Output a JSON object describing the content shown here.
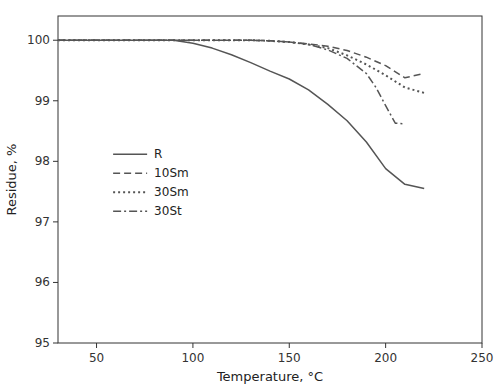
{
  "chart_data": {
    "type": "line",
    "xlabel": "Temperature, °C",
    "ylabel": "Residue, %",
    "xlim": [
      30,
      250
    ],
    "ylim": [
      95,
      100.4
    ],
    "xticks": [
      50,
      100,
      150,
      200,
      250
    ],
    "yticks": [
      95,
      96,
      97,
      98,
      99,
      100
    ],
    "grid": false,
    "legend": "left",
    "series": [
      {
        "name": "R",
        "color": "#555555",
        "line_style": "solid",
        "x": [
          30,
          35,
          40,
          50,
          60,
          70,
          80,
          90,
          100,
          110,
          120,
          130,
          140,
          150,
          160,
          170,
          180,
          190,
          200,
          210,
          220
        ],
        "values": [
          100.0,
          100.0,
          100.0,
          100.0,
          100.0,
          100.0,
          100.0,
          100.0,
          99.95,
          99.87,
          99.76,
          99.63,
          99.49,
          99.36,
          99.18,
          98.94,
          98.67,
          98.32,
          97.88,
          97.62,
          97.55
        ]
      },
      {
        "name": "10Sm",
        "color": "#555555",
        "line_style": "dashed",
        "x": [
          30,
          40,
          50,
          60,
          70,
          80,
          90,
          100,
          110,
          120,
          130,
          140,
          150,
          160,
          170,
          180,
          190,
          200,
          210,
          220
        ],
        "values": [
          100.0,
          100.0,
          100.0,
          100.0,
          100.0,
          100.0,
          100.0,
          100.0,
          100.0,
          100.0,
          100.0,
          99.99,
          99.97,
          99.94,
          99.9,
          99.83,
          99.72,
          99.58,
          99.38,
          99.45
        ]
      },
      {
        "name": "30Sm",
        "color": "#555555",
        "line_style": "dotted",
        "x": [
          30,
          40,
          50,
          60,
          70,
          80,
          90,
          100,
          110,
          120,
          130,
          140,
          150,
          160,
          170,
          180,
          190,
          200,
          210,
          220
        ],
        "values": [
          100.0,
          100.0,
          100.0,
          100.0,
          100.0,
          100.0,
          100.0,
          100.0,
          100.0,
          100.0,
          100.0,
          99.99,
          99.97,
          99.93,
          99.87,
          99.75,
          99.6,
          99.42,
          99.22,
          99.13
        ]
      },
      {
        "name": "30St",
        "color": "#555555",
        "line_style": "dashdot",
        "x": [
          30,
          40,
          50,
          60,
          70,
          80,
          90,
          100,
          110,
          120,
          130,
          140,
          150,
          160,
          170,
          180,
          190,
          195,
          200,
          205,
          210
        ],
        "values": [
          100.0,
          100.0,
          100.0,
          100.0,
          100.0,
          100.0,
          100.0,
          100.0,
          100.0,
          100.0,
          100.0,
          99.99,
          99.97,
          99.93,
          99.84,
          99.7,
          99.45,
          99.22,
          98.92,
          98.63,
          98.62
        ]
      }
    ]
  }
}
